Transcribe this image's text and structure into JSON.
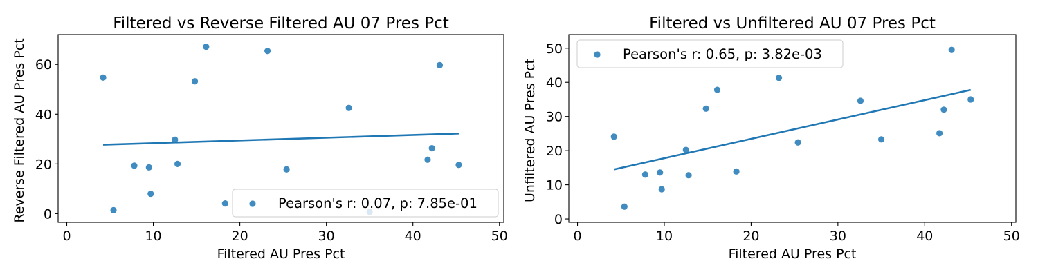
{
  "figure": {
    "colors": {
      "point": "#1f77b4",
      "line": "#1f77b4",
      "axes": "#000000",
      "legend_border": "#cccccc"
    }
  },
  "chart_data": [
    {
      "type": "scatter",
      "title": "Filtered vs Reverse Filtered AU 07 Pres Pct",
      "xlabel": "Filtered AU Pres Pct",
      "ylabel": "Reverse Filtered AU Pres Pct",
      "xlim": [
        -1,
        50.5
      ],
      "ylim": [
        -3.5,
        72
      ],
      "xticks": [
        0,
        10,
        20,
        30,
        40,
        50
      ],
      "yticks": [
        0,
        20,
        40,
        60
      ],
      "legend": {
        "label": "Pearson's r: 0.07, p: 7.85e-01",
        "placement": "lower right"
      },
      "points": [
        {
          "x": 4.2,
          "y": 54.7
        },
        {
          "x": 5.4,
          "y": 1.4
        },
        {
          "x": 7.8,
          "y": 19.3
        },
        {
          "x": 9.5,
          "y": 18.6
        },
        {
          "x": 9.7,
          "y": 8.0
        },
        {
          "x": 12.5,
          "y": 29.7
        },
        {
          "x": 12.8,
          "y": 20.0
        },
        {
          "x": 14.8,
          "y": 53.2
        },
        {
          "x": 16.1,
          "y": 67.1
        },
        {
          "x": 18.3,
          "y": 4.1
        },
        {
          "x": 23.2,
          "y": 65.4
        },
        {
          "x": 25.4,
          "y": 17.8
        },
        {
          "x": 32.6,
          "y": 42.5
        },
        {
          "x": 35.0,
          "y": 0.7
        },
        {
          "x": 41.7,
          "y": 21.7
        },
        {
          "x": 42.2,
          "y": 26.3
        },
        {
          "x": 43.1,
          "y": 59.7
        },
        {
          "x": 45.3,
          "y": 19.6
        }
      ],
      "fit_line": {
        "x": [
          4.2,
          45.3
        ],
        "y": [
          27.7,
          32.2
        ]
      }
    },
    {
      "type": "scatter",
      "title": "Filtered vs Unfiltered AU 07 Pres Pct",
      "xlabel": "Filtered AU Pres Pct",
      "ylabel": "Unfiltered AU Pres Pct",
      "xlim": [
        -1,
        50.5
      ],
      "ylim": [
        -1,
        54
      ],
      "xticks": [
        0,
        10,
        20,
        30,
        40,
        50
      ],
      "yticks": [
        0,
        10,
        20,
        30,
        40,
        50
      ],
      "legend": {
        "label": "Pearson's r: 0.65, p: 3.82e-03",
        "placement": "upper left"
      },
      "points": [
        {
          "x": 4.2,
          "y": 24.1
        },
        {
          "x": 5.4,
          "y": 3.6
        },
        {
          "x": 7.8,
          "y": 13.0
        },
        {
          "x": 9.5,
          "y": 13.6
        },
        {
          "x": 9.7,
          "y": 8.7
        },
        {
          "x": 12.5,
          "y": 20.2
        },
        {
          "x": 12.8,
          "y": 12.8
        },
        {
          "x": 14.8,
          "y": 32.3
        },
        {
          "x": 16.1,
          "y": 37.8
        },
        {
          "x": 18.3,
          "y": 13.9
        },
        {
          "x": 23.2,
          "y": 41.3
        },
        {
          "x": 25.4,
          "y": 22.4
        },
        {
          "x": 32.6,
          "y": 34.6
        },
        {
          "x": 35.0,
          "y": 23.3
        },
        {
          "x": 41.7,
          "y": 25.1
        },
        {
          "x": 42.2,
          "y": 32.0
        },
        {
          "x": 43.1,
          "y": 49.5
        },
        {
          "x": 45.3,
          "y": 35.0
        }
      ],
      "fit_line": {
        "x": [
          4.2,
          45.3
        ],
        "y": [
          14.5,
          37.8
        ]
      }
    }
  ]
}
